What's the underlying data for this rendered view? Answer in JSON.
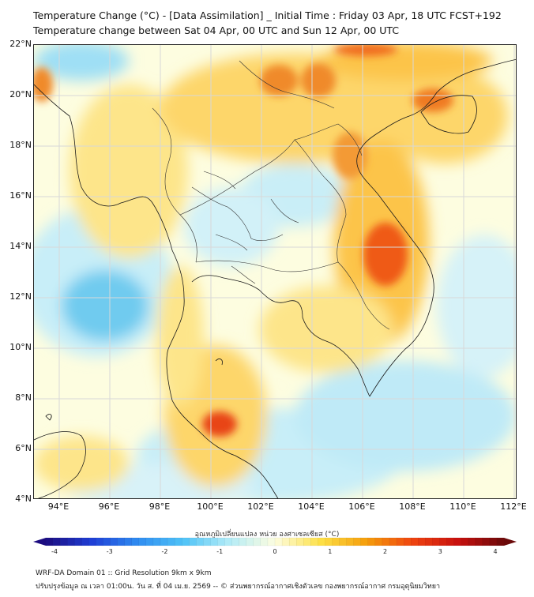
{
  "header": {
    "title_line1": "Temperature Change (°C) - [Data Assimilation] _ Initial Time : Friday 03 Apr, 18 UTC FCST+192",
    "title_line2": "Temperature change between Sat 04 Apr, 00 UTC and Sun 12 Apr, 00 UTC"
  },
  "map": {
    "lat_labels": [
      "22°N",
      "20°N",
      "18°N",
      "16°N",
      "14°N",
      "12°N",
      "10°N",
      "8°N",
      "6°N",
      "4°N"
    ],
    "lon_labels": [
      "94°E",
      "96°E",
      "98°E",
      "100°E",
      "102°E",
      "104°E",
      "106°E",
      "108°E",
      "110°E",
      "112°E"
    ],
    "background_color": "#fdfde0"
  },
  "colorbar": {
    "title": "อุณหภูมิเปลี่ยนแปลง หน่วย องศาเซลเซียส (°C)",
    "tick_labels": [
      "-4",
      "-3",
      "-2",
      "-1",
      "0",
      "1",
      "2",
      "3",
      "4"
    ],
    "min": -4,
    "max": 4,
    "stops": [
      "#1c0c80",
      "#1f3fd6",
      "#2f8cf0",
      "#4fc3f7",
      "#b3ecf7",
      "#fdfde0",
      "#fde047",
      "#f59e0b",
      "#ef4410",
      "#c8100e",
      "#6b0a0a"
    ]
  },
  "footer": {
    "line1": "WRF-DA Domain 01 :: Grid Resolution 9km x 9km",
    "line2": "ปรับปรุงข้อมูล ณ เวลา 01:00น. วัน ส. ที่ 04 เม.ย. 2569 -- © ส่วนพยากรณ์อากาศเชิงตัวเลข กองพยากรณ์อากาศ กรมอุตุนิยมวิทยา"
  }
}
